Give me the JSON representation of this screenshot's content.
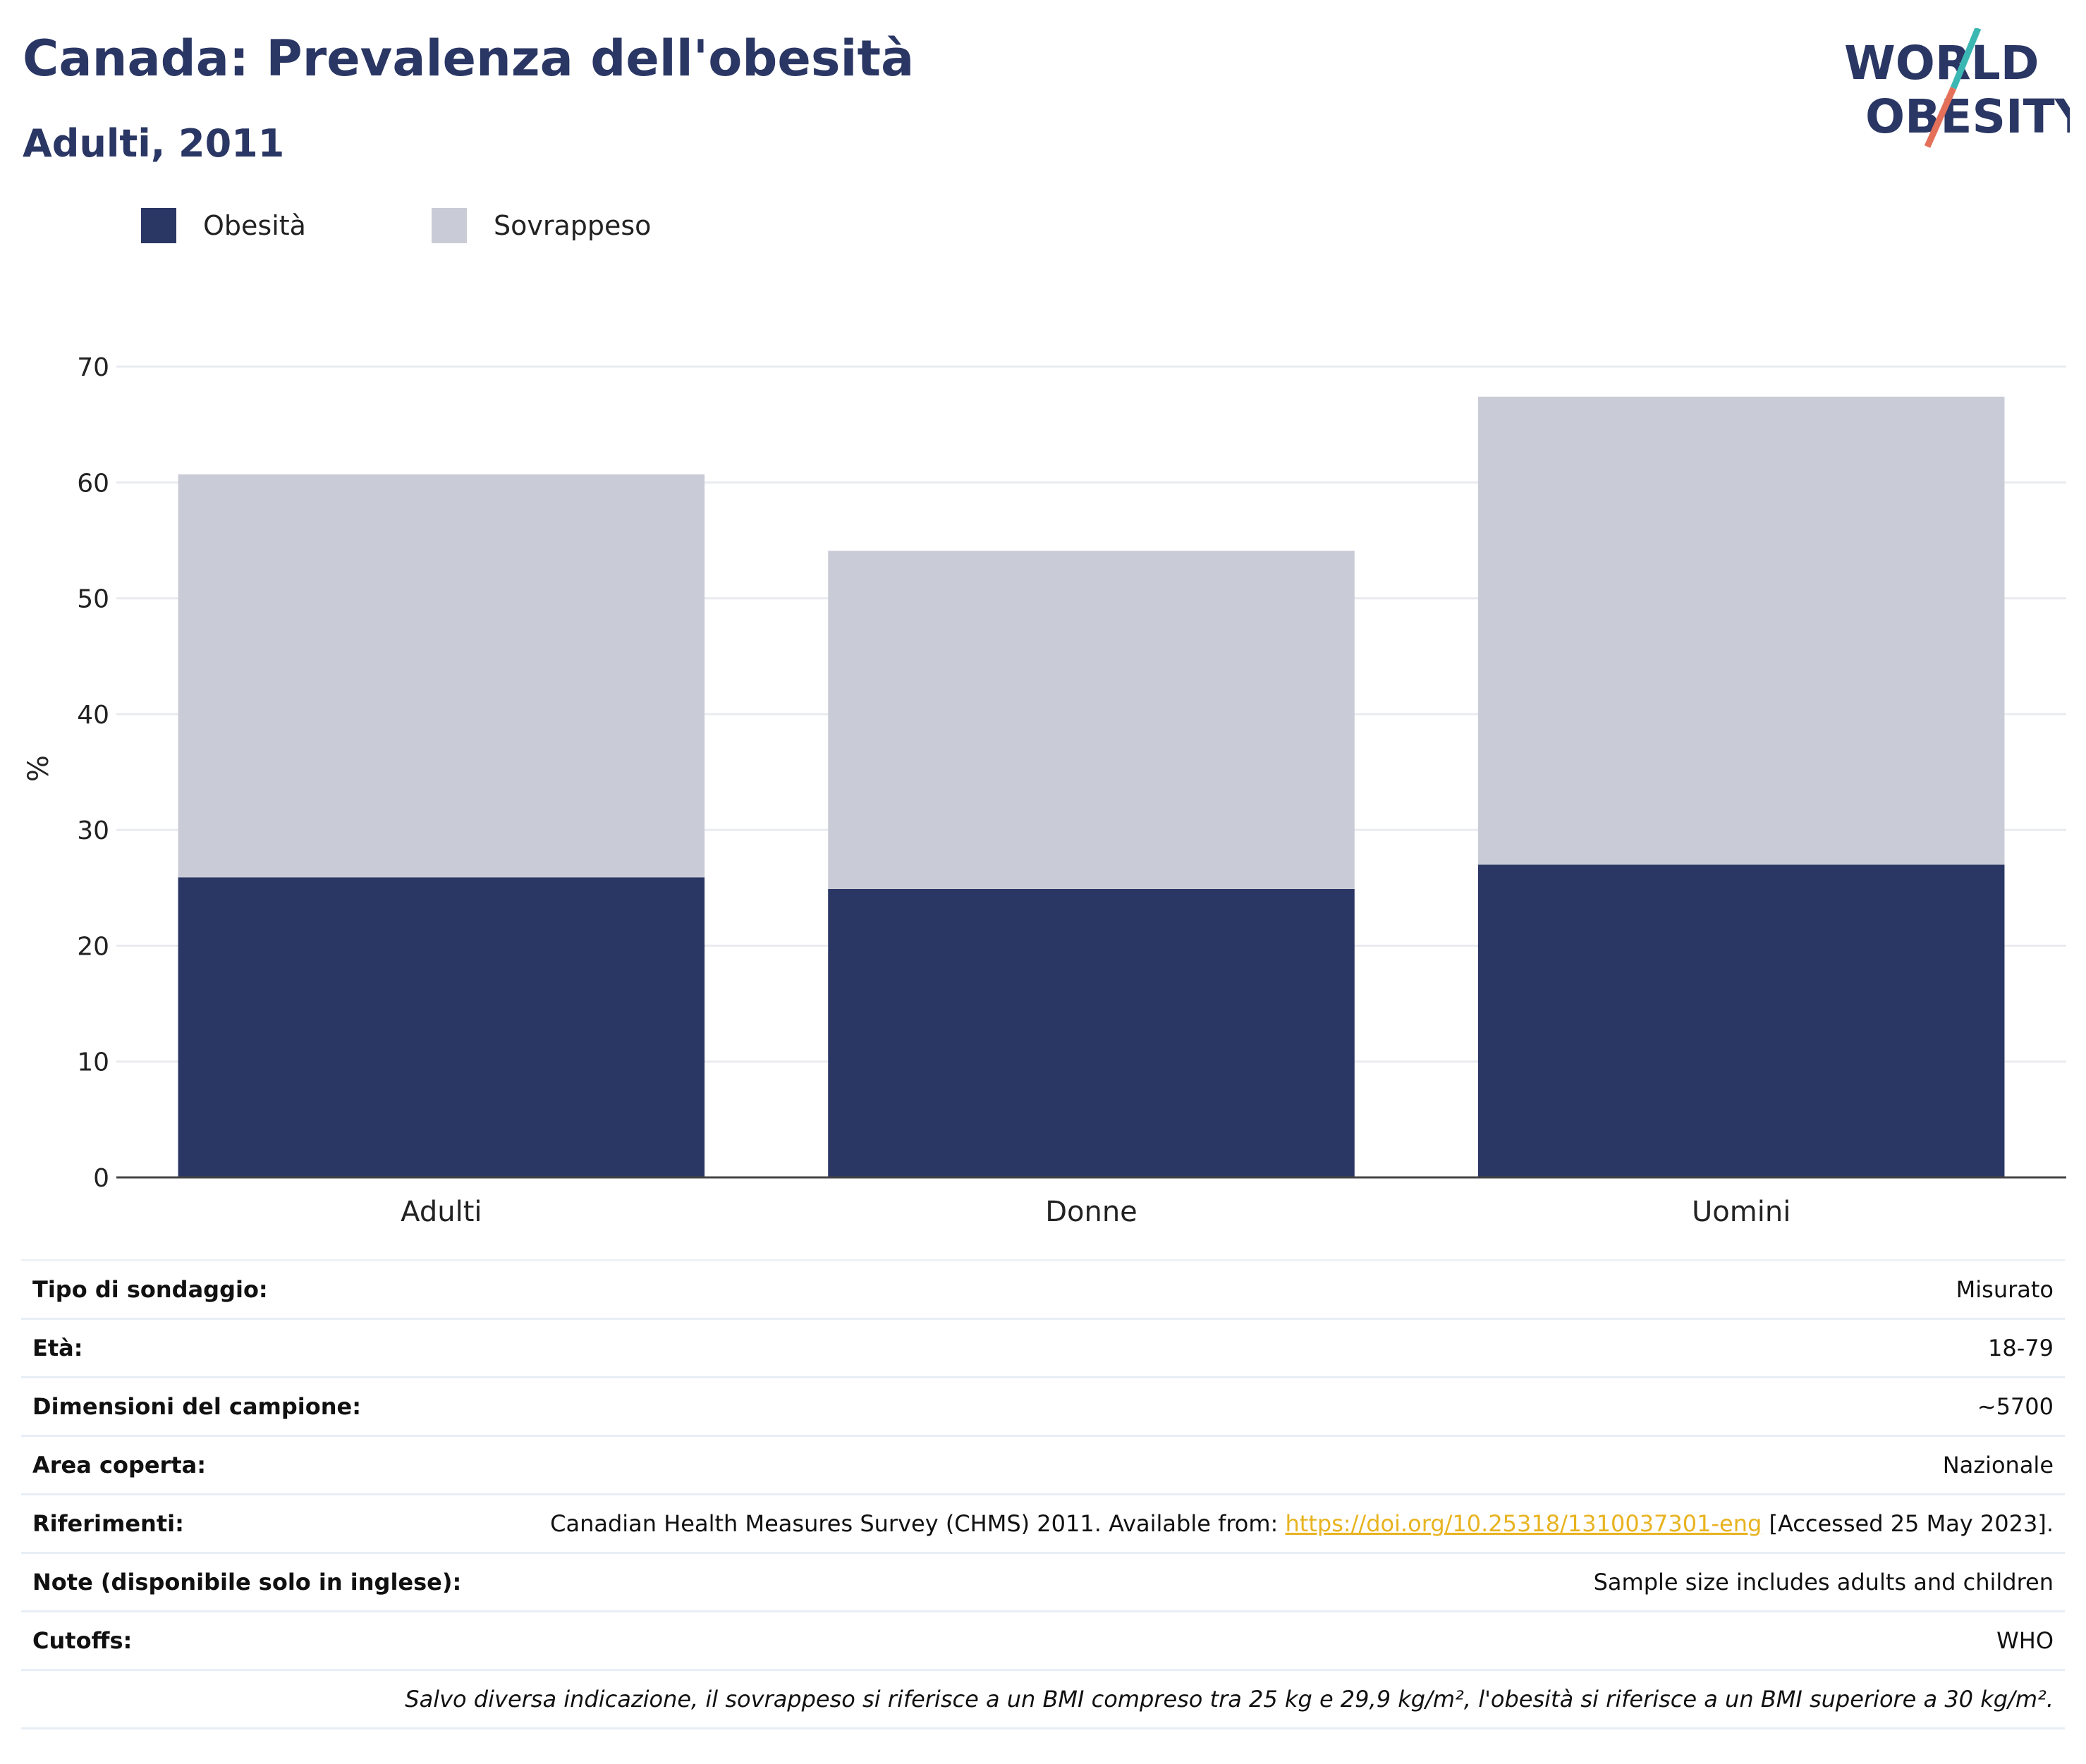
{
  "header": {
    "title": "Canada: Prevalenza dell'obesità",
    "subtitle": "Adulti, 2011"
  },
  "logo": {
    "line1": "WORLD",
    "line2": "OBESITY",
    "colors": {
      "text": "#2a3663",
      "accent_teal": "#3bb7b3",
      "accent_coral": "#e4705a"
    }
  },
  "chart_data": {
    "type": "bar",
    "stacked": true,
    "categories": [
      "Adulti",
      "Donne",
      "Uomini"
    ],
    "series": [
      {
        "name": "Obesità",
        "color": "#2a3663",
        "values": [
          25.9,
          24.9,
          27.0
        ]
      },
      {
        "name": "Sovrappeso",
        "color": "#c9cbd6",
        "values": [
          34.8,
          29.2,
          40.4
        ]
      }
    ],
    "xlabel": "",
    "ylabel": "%",
    "ylim": [
      0,
      70
    ],
    "yticks": [
      0,
      10,
      20,
      30,
      40,
      50,
      60,
      70
    ],
    "grid": true,
    "legend_position": "top-left"
  },
  "info": {
    "rows": [
      {
        "label": "Tipo di sondaggio:",
        "value": "Misurato"
      },
      {
        "label": "Età:",
        "value": "18-79"
      },
      {
        "label": "Dimensioni del campione:",
        "value": "~5700"
      },
      {
        "label": "Area coperta:",
        "value": "Nazionale"
      },
      {
        "label": "Riferimenti:",
        "value_prefix": "Canadian Health Measures Survey (CHMS) 2011. Available from: ",
        "link": "https://doi.org/10.25318/1310037301-eng",
        "value_suffix": " [Accessed 25 May 2023]."
      },
      {
        "label": "Note (disponibile solo in inglese):",
        "value": "Sample size includes adults and children"
      },
      {
        "label": "Cutoffs:",
        "value": "WHO"
      }
    ],
    "footnote": "Salvo diversa indicazione, il sovrappeso si riferisce a un BMI compreso tra 25 kg e 29,9 kg/m², l'obesità si riferisce a un BMI superiore a 30 kg/m²."
  }
}
